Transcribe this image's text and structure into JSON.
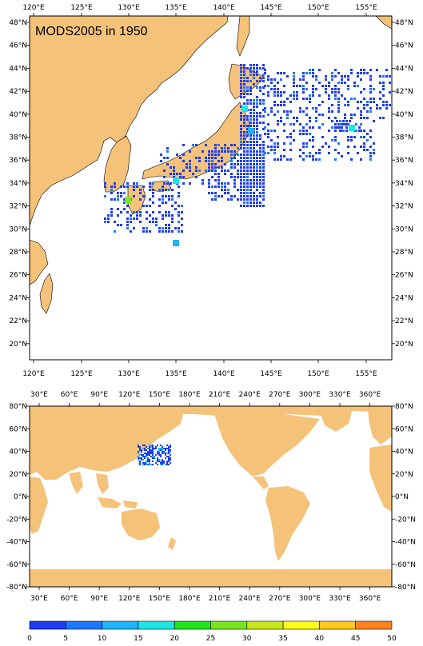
{
  "title": "MODS2005 in 1950",
  "colors": {
    "land": "#f5c27a",
    "ocean": "#ffffff",
    "frame": "#000000"
  },
  "top_map": {
    "lon_labels": [
      "120°E",
      "125°E",
      "130°E",
      "135°E",
      "140°E",
      "145°E",
      "150°E",
      "155°E"
    ],
    "lat_labels": [
      "48°N",
      "46°N",
      "44°N",
      "42°N",
      "40°N",
      "38°N",
      "36°N",
      "34°N",
      "32°N",
      "30°N",
      "28°N",
      "26°N",
      "24°N",
      "22°N",
      "20°N"
    ]
  },
  "bottom_map": {
    "lon_labels": [
      "30°E",
      "60°E",
      "90°E",
      "120°E",
      "150°E",
      "180°E",
      "210°E",
      "240°E",
      "270°E",
      "300°E",
      "330°E",
      "360°E"
    ],
    "lat_labels": [
      "80°N",
      "60°N",
      "40°N",
      "20°N",
      "0°N",
      "-20°N",
      "-40°N",
      "-60°N",
      "-80°N"
    ]
  },
  "colorbar": {
    "labels": [
      "0",
      "5",
      "10",
      "15",
      "20",
      "25",
      "30",
      "35",
      "40",
      "45",
      "50"
    ],
    "colors": [
      "#1e3cf0",
      "#1e78ff",
      "#1eb4ff",
      "#1ee6e6",
      "#1ee61e",
      "#78e61e",
      "#c8e61e",
      "#ffff1e",
      "#ffc81e",
      "#ff821e"
    ]
  }
}
